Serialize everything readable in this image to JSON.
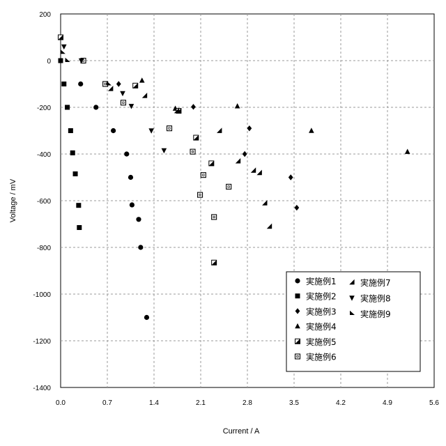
{
  "chart_data": {
    "type": "scatter",
    "xlabel": "Current / A",
    "ylabel": "Voltage / mV",
    "xlim": [
      0,
      5.6
    ],
    "ylim": [
      -1400,
      200
    ],
    "xticks": [
      "0.0",
      "0.7",
      "1.4",
      "2.1",
      "2.8",
      "3.5",
      "4.2",
      "4.9",
      "5.6"
    ],
    "yticks": [
      "200",
      "0",
      "-200",
      "-400",
      "-600",
      "-800",
      "-1000",
      "-1200",
      "-1400"
    ],
    "grid": true,
    "legend_position": "bottom-right",
    "series": [
      {
        "name": "実施例1",
        "marker": "circle",
        "x": [
          0.3,
          0.53,
          0.79,
          0.99,
          1.05,
          1.07,
          1.17,
          1.2,
          1.29
        ],
        "y": [
          -100,
          -200,
          -300,
          -400,
          -500,
          -618,
          -680,
          -800,
          -1100
        ]
      },
      {
        "name": "実施例2",
        "marker": "square",
        "x": [
          0.0,
          0.05,
          0.1,
          0.15,
          0.18,
          0.22,
          0.27,
          0.28
        ],
        "y": [
          0,
          -100,
          -200,
          -300,
          -395,
          -485,
          -620,
          -715
        ]
      },
      {
        "name": "実施例3",
        "marker": "diamond",
        "x": [
          0.87,
          1.99,
          2.76,
          2.83,
          3.45,
          3.54
        ],
        "y": [
          -100,
          -198,
          -400,
          -290,
          -500,
          -630
        ]
      },
      {
        "name": "実施例4",
        "marker": "triangle-up",
        "x": [
          1.22,
          1.72,
          2.65,
          3.76,
          5.2
        ],
        "y": [
          -85,
          -205,
          -195,
          -300,
          -390
        ]
      },
      {
        "name": "実施例5",
        "marker": "half-square",
        "x": [
          0.0,
          1.12,
          1.77,
          2.03,
          2.26,
          2.3
        ],
        "y": [
          100,
          -107,
          -215,
          -330,
          -440,
          -865
        ]
      },
      {
        "name": "実施例6",
        "marker": "open-square",
        "x": [
          0.34,
          0.67,
          0.94,
          1.63,
          1.98,
          2.09,
          2.14,
          2.3,
          2.52
        ],
        "y": [
          0,
          -100,
          -180,
          -290,
          -390,
          -575,
          -490,
          -670,
          -540
        ]
      },
      {
        "name": "実施例7",
        "marker": "half-triangle",
        "x": [
          0.75,
          1.26,
          1.74,
          2.38,
          2.66,
          2.89,
          2.98,
          3.06,
          3.13
        ],
        "y": [
          -120,
          -150,
          -215,
          -300,
          -430,
          -470,
          -480,
          -610,
          -710
        ]
      },
      {
        "name": "実施例8",
        "marker": "triangle-down",
        "x": [
          0.05,
          0.31,
          0.93,
          1.06,
          1.36,
          1.55
        ],
        "y": [
          60,
          0,
          -140,
          -195,
          -300,
          -385
        ]
      },
      {
        "name": "実施例9",
        "marker": "flag-triangle",
        "x": [
          0.03,
          0.1,
          0.72
        ],
        "y": [
          35,
          0,
          -100
        ]
      }
    ]
  }
}
